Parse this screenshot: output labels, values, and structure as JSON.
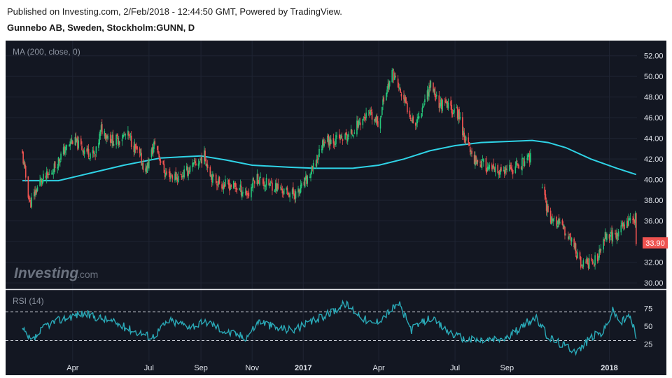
{
  "header": {
    "published": "Published on Investing.com, 2/Feb/2018 - 12:44:50 GMT, Powered by TradingView.",
    "symbol": "Gunnebo AB, Sweden, Stockholm:GUNN, D"
  },
  "watermark": {
    "brand": "Investing",
    "suffix": ".com"
  },
  "colors": {
    "background": "#131722",
    "up": "#26c67a",
    "down": "#ef5350",
    "ma": "#2fd3e6",
    "rsi": "#2aa9b7",
    "last_price_bg": "#ef5350"
  },
  "chart_data": [
    {
      "type": "candlestick",
      "indicator_label": "MA (200, close, 0)",
      "y_ticks": [
        "52.00",
        "50.00",
        "48.00",
        "46.00",
        "44.00",
        "42.00",
        "40.00",
        "38.00",
        "36.00",
        "34.00",
        "32.00",
        "30.00"
      ],
      "ylim": [
        29.6,
        53.2
      ],
      "x_ticks": [
        "Apr",
        "Jul",
        "Sep",
        "Nov",
        "2017",
        "Apr",
        "Jul",
        "Sep",
        "2018"
      ],
      "last_price": "33.90",
      "price_path": [
        [
          "2016-02-01",
          42.4
        ],
        [
          "2016-02-10",
          37.6
        ],
        [
          "2016-02-22",
          39.8
        ],
        [
          "2016-03-05",
          40.5
        ],
        [
          "2016-03-20",
          42.6
        ],
        [
          "2016-04-01",
          43.8
        ],
        [
          "2016-04-15",
          42.9
        ],
        [
          "2016-04-28",
          42.3
        ],
        [
          "2016-05-05",
          44.9
        ],
        [
          "2016-05-20",
          43.7
        ],
        [
          "2016-06-05",
          44.4
        ],
        [
          "2016-06-20",
          42.2
        ],
        [
          "2016-06-27",
          40.8
        ],
        [
          "2016-07-08",
          43.6
        ],
        [
          "2016-07-20",
          40.6
        ],
        [
          "2016-08-05",
          40.2
        ],
        [
          "2016-08-20",
          41.1
        ],
        [
          "2016-09-05",
          42.3
        ],
        [
          "2016-09-15",
          40.1
        ],
        [
          "2016-09-28",
          39.5
        ],
        [
          "2016-10-10",
          39.4
        ],
        [
          "2016-10-28",
          38.6
        ],
        [
          "2016-11-05",
          40.3
        ],
        [
          "2016-11-15",
          39.7
        ],
        [
          "2016-11-28",
          39.4
        ],
        [
          "2016-12-10",
          38.8
        ],
        [
          "2016-12-25",
          38.6
        ],
        [
          "2017-01-08",
          40.3
        ],
        [
          "2017-01-15",
          41.4
        ],
        [
          "2017-01-25",
          43.8
        ],
        [
          "2017-02-10",
          43.9
        ],
        [
          "2017-02-25",
          44.2
        ],
        [
          "2017-03-10",
          45.7
        ],
        [
          "2017-03-20",
          46.3
        ],
        [
          "2017-04-01",
          45.4
        ],
        [
          "2017-04-08",
          48.2
        ],
        [
          "2017-04-18",
          50.4
        ],
        [
          "2017-04-25",
          48.8
        ],
        [
          "2017-05-05",
          46.9
        ],
        [
          "2017-05-15",
          45.4
        ],
        [
          "2017-05-22",
          46.9
        ],
        [
          "2017-06-02",
          49.3
        ],
        [
          "2017-06-12",
          47.4
        ],
        [
          "2017-06-25",
          47.0
        ],
        [
          "2017-07-05",
          46.4
        ],
        [
          "2017-07-12",
          44.2
        ],
        [
          "2017-07-22",
          42.2
        ],
        [
          "2017-08-05",
          41.4
        ],
        [
          "2017-08-20",
          40.6
        ],
        [
          "2017-09-05",
          40.9
        ],
        [
          "2017-09-20",
          41.7
        ],
        [
          "2017-10-01",
          42.3
        ],
        [
          "2017-10-08",
          null
        ],
        [
          "2017-10-12",
          39.1
        ],
        [
          "2017-10-22",
          36.4
        ],
        [
          "2017-11-05",
          35.4
        ],
        [
          "2017-11-18",
          34.1
        ],
        [
          "2017-11-28",
          31.7
        ],
        [
          "2017-12-08",
          32.0
        ],
        [
          "2017-12-18",
          32.2
        ],
        [
          "2017-12-28",
          34.8
        ],
        [
          "2018-01-08",
          34.4
        ],
        [
          "2018-01-18",
          35.7
        ],
        [
          "2018-01-25",
          36.1
        ],
        [
          "2018-02-01",
          36.3
        ],
        [
          "2018-02-02",
          33.9
        ]
      ],
      "ma_path": [
        [
          "2016-02-01",
          39.9
        ],
        [
          "2016-03-15",
          39.9
        ],
        [
          "2016-04-15",
          40.5
        ],
        [
          "2016-06-01",
          41.4
        ],
        [
          "2016-07-15",
          42.1
        ],
        [
          "2016-09-01",
          42.3
        ],
        [
          "2016-10-01",
          41.9
        ],
        [
          "2016-11-01",
          41.4
        ],
        [
          "2016-12-15",
          41.2
        ],
        [
          "2017-01-15",
          41.1
        ],
        [
          "2017-03-01",
          41.1
        ],
        [
          "2017-04-01",
          41.4
        ],
        [
          "2017-05-01",
          42.0
        ],
        [
          "2017-06-01",
          42.8
        ],
        [
          "2017-07-01",
          43.3
        ],
        [
          "2017-08-01",
          43.6
        ],
        [
          "2017-09-01",
          43.7
        ],
        [
          "2017-10-01",
          43.8
        ],
        [
          "2017-10-20",
          43.6
        ],
        [
          "2017-11-10",
          43.1
        ],
        [
          "2017-12-10",
          42.0
        ],
        [
          "2018-01-10",
          41.1
        ],
        [
          "2018-02-02",
          40.5
        ]
      ]
    },
    {
      "type": "line",
      "indicator_label": "RSI (14)",
      "y_ticks": [
        "75",
        "50",
        "25"
      ],
      "ylim": [
        5,
        98
      ],
      "reference_lines": [
        70,
        30
      ],
      "rsi_path": [
        [
          "2016-02-01",
          45
        ],
        [
          "2016-02-12",
          28
        ],
        [
          "2016-03-01",
          52
        ],
        [
          "2016-03-20",
          60
        ],
        [
          "2016-04-10",
          68
        ],
        [
          "2016-05-10",
          60
        ],
        [
          "2016-06-10",
          45
        ],
        [
          "2016-07-05",
          35
        ],
        [
          "2016-07-25",
          58
        ],
        [
          "2016-08-20",
          50
        ],
        [
          "2016-09-10",
          56
        ],
        [
          "2016-10-01",
          42
        ],
        [
          "2016-10-25",
          35
        ],
        [
          "2016-11-10",
          58
        ],
        [
          "2016-11-28",
          48
        ],
        [
          "2016-12-20",
          45
        ],
        [
          "2017-01-10",
          55
        ],
        [
          "2017-02-01",
          68
        ],
        [
          "2017-02-20",
          82
        ],
        [
          "2017-03-10",
          65
        ],
        [
          "2017-03-25",
          52
        ],
        [
          "2017-04-15",
          72
        ],
        [
          "2017-04-25",
          82
        ],
        [
          "2017-05-10",
          45
        ],
        [
          "2017-06-01",
          62
        ],
        [
          "2017-06-20",
          45
        ],
        [
          "2017-07-10",
          32
        ],
        [
          "2017-08-05",
          30
        ],
        [
          "2017-09-01",
          33
        ],
        [
          "2017-09-25",
          55
        ],
        [
          "2017-10-05",
          62
        ],
        [
          "2017-10-20",
          35
        ],
        [
          "2017-11-10",
          22
        ],
        [
          "2017-11-25",
          15
        ],
        [
          "2017-12-10",
          35
        ],
        [
          "2017-12-25",
          42
        ],
        [
          "2018-01-05",
          72
        ],
        [
          "2018-01-15",
          55
        ],
        [
          "2018-01-25",
          65
        ],
        [
          "2018-02-02",
          38
        ]
      ]
    }
  ]
}
